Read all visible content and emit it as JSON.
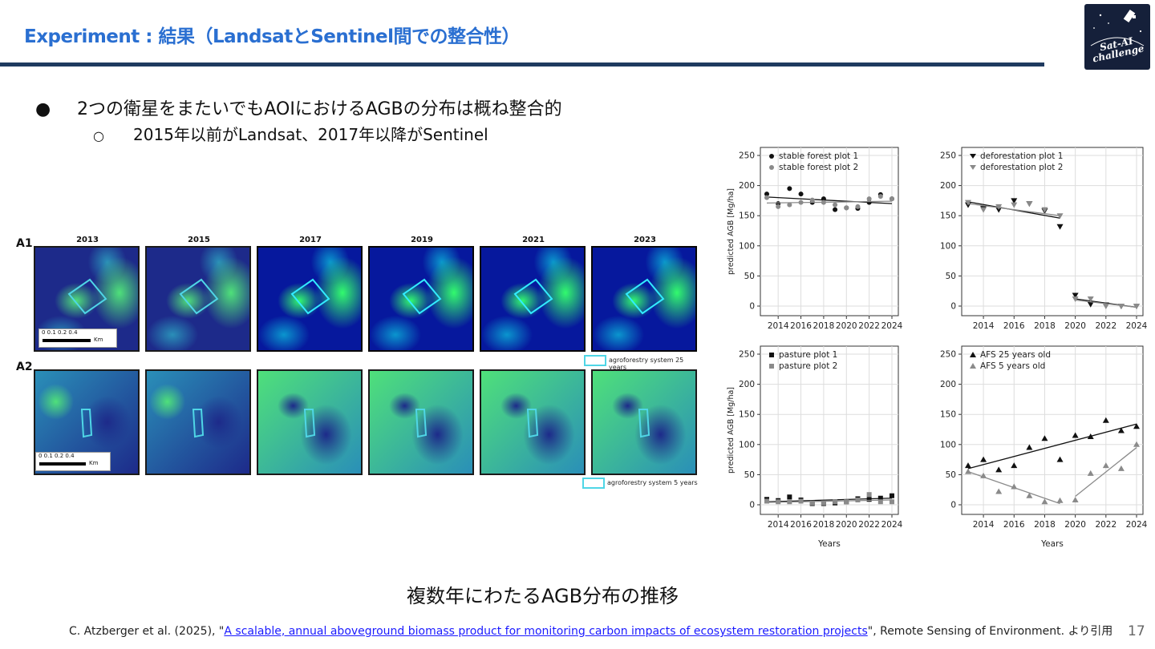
{
  "slide": {
    "title": "Experiment : 結果（LandsatとSentinel間での整合性）",
    "logo_text_1": "Sat-AI",
    "logo_text_2": "challenge",
    "bullet_1": "2つの衛星をまたいでもAOIにおけるAGBの分布は概ね整合的",
    "bullet_2": "2015年以前がLandsat、2017年以降がSentinel",
    "bullet_mark_1": "●",
    "bullet_mark_2": "○",
    "caption": "複数年にわたるAGB分布の推移",
    "citation_prefix": "C. Atzberger et al. (2025), \"",
    "citation_link": "A scalable, annual aboveground biomass product for monitoring carbon impacts of ecosystem restoration projects",
    "citation_suffix": "\", Remote Sensing of Environment. より引用",
    "page_number": "17"
  },
  "map_panel": {
    "row_labels": [
      "A1",
      "A2"
    ],
    "years": [
      "2013",
      "2015",
      "2017",
      "2019",
      "2021",
      "2023"
    ],
    "scale_ticks": "0  0.1 0.2      0.4",
    "scale_unit": "Km",
    "legend_a1": "agroforestry system 25 years",
    "legend_a2": "agroforestry system 5 years",
    "colors": {
      "low": "#1d2a8a",
      "mid": "#2a8fb8",
      "high": "#4fe07a",
      "outline": "#4fd6e6"
    }
  },
  "chart_data": [
    {
      "type": "scatter",
      "ylabel": "predicted AGB [Mg/ha]",
      "xlabel": "",
      "ylim": [
        0,
        250
      ],
      "xlim": [
        2013,
        2024
      ],
      "xticks": [
        "2014",
        "2016",
        "2018",
        "2020",
        "2022",
        "2024"
      ],
      "yticks": [
        "0",
        "50",
        "100",
        "150",
        "200",
        "250"
      ],
      "legend_position": "top-left",
      "series": [
        {
          "name": "stable forest plot 1",
          "marker": "circle",
          "color": "#111111",
          "x": [
            2013,
            2014,
            2015,
            2016,
            2017,
            2018,
            2019,
            2020,
            2021,
            2022,
            2023,
            2024
          ],
          "y": [
            186,
            170,
            195,
            186,
            172,
            178,
            160,
            163,
            162,
            172,
            185,
            178
          ],
          "trend": [
            [
              2013,
              181
            ],
            [
              2024,
              170
            ]
          ]
        },
        {
          "name": "stable forest plot 2",
          "marker": "circle",
          "color": "#8a8a8a",
          "x": [
            2013,
            2014,
            2015,
            2016,
            2017,
            2018,
            2019,
            2020,
            2021,
            2022,
            2023,
            2024
          ],
          "y": [
            180,
            165,
            168,
            172,
            176,
            172,
            168,
            163,
            165,
            178,
            182,
            178
          ],
          "trend": [
            [
              2013,
              171
            ],
            [
              2024,
              174
            ]
          ]
        }
      ]
    },
    {
      "type": "scatter",
      "xlabel": "",
      "ylim": [
        0,
        250
      ],
      "xlim": [
        2013,
        2024
      ],
      "xticks": [
        "2014",
        "2016",
        "2018",
        "2020",
        "2022",
        "2024"
      ],
      "yticks": [
        "0",
        "50",
        "100",
        "150",
        "200",
        "250"
      ],
      "legend_position": "top-left",
      "series": [
        {
          "name": "deforestation plot 1",
          "marker": "triangle-down",
          "color": "#111111",
          "x": [
            2013,
            2014,
            2015,
            2016,
            2017,
            2018,
            2019,
            2020,
            2021,
            2022,
            2023,
            2024
          ],
          "y": [
            168,
            162,
            160,
            175,
            170,
            158,
            132,
            18,
            3,
            2,
            0,
            0
          ],
          "trend": [
            [
              2013,
              173
            ],
            [
              2019,
              146
            ],
            [
              2020,
              12
            ],
            [
              2024,
              -2
            ]
          ]
        },
        {
          "name": "deforestation plot 2",
          "marker": "triangle-down",
          "color": "#8a8a8a",
          "x": [
            2013,
            2014,
            2015,
            2016,
            2017,
            2018,
            2019,
            2020,
            2021,
            2022,
            2023,
            2024
          ],
          "y": [
            172,
            160,
            165,
            168,
            170,
            160,
            150,
            12,
            12,
            0,
            0,
            0
          ],
          "trend": [
            [
              2013,
              170
            ],
            [
              2019,
              150
            ],
            [
              2020,
              10
            ],
            [
              2024,
              -2
            ]
          ]
        }
      ]
    },
    {
      "type": "scatter",
      "ylabel": "predicted AGB [Mg/ha]",
      "xlabel": "Years",
      "ylim": [
        0,
        250
      ],
      "xlim": [
        2013,
        2024
      ],
      "xticks": [
        "2014",
        "2016",
        "2018",
        "2020",
        "2022",
        "2024"
      ],
      "yticks": [
        "0",
        "50",
        "100",
        "150",
        "200",
        "250"
      ],
      "legend_position": "top-left",
      "series": [
        {
          "name": "pasture plot 1",
          "marker": "square",
          "color": "#111111",
          "x": [
            2013,
            2014,
            2015,
            2016,
            2017,
            2018,
            2019,
            2020,
            2021,
            2022,
            2023,
            2024
          ],
          "y": [
            9,
            7,
            13,
            8,
            2,
            2,
            3,
            5,
            10,
            9,
            11,
            15
          ],
          "trend": [
            [
              2013,
              5
            ],
            [
              2024,
              11
            ]
          ]
        },
        {
          "name": "pasture plot 2",
          "marker": "square",
          "color": "#8a8a8a",
          "x": [
            2013,
            2014,
            2015,
            2016,
            2017,
            2018,
            2019,
            2020,
            2021,
            2022,
            2023,
            2024
          ],
          "y": [
            6,
            5,
            5,
            6,
            3,
            3,
            5,
            5,
            8,
            17,
            5,
            5
          ],
          "trend": [
            [
              2013,
              4
            ],
            [
              2024,
              8
            ]
          ]
        }
      ]
    },
    {
      "type": "scatter",
      "xlabel": "Years",
      "ylim": [
        0,
        250
      ],
      "xlim": [
        2013,
        2024
      ],
      "xticks": [
        "2014",
        "2016",
        "2018",
        "2020",
        "2022",
        "2024"
      ],
      "yticks": [
        "0",
        "50",
        "100",
        "150",
        "200",
        "250"
      ],
      "legend_position": "top-left",
      "series": [
        {
          "name": "AFS 25 years old",
          "marker": "triangle-up",
          "color": "#111111",
          "x": [
            2013,
            2014,
            2015,
            2016,
            2017,
            2018,
            2019,
            2020,
            2021,
            2022,
            2023,
            2024
          ],
          "y": [
            65,
            75,
            58,
            65,
            95,
            110,
            75,
            115,
            113,
            140,
            123,
            130
          ],
          "trend": [
            [
              2013,
              60
            ],
            [
              2024,
              134
            ]
          ]
        },
        {
          "name": "AFS 5 years old",
          "marker": "triangle-up",
          "color": "#8a8a8a",
          "x": [
            2013,
            2014,
            2015,
            2016,
            2017,
            2018,
            2019,
            2020,
            2021,
            2022,
            2023,
            2024
          ],
          "y": [
            55,
            48,
            22,
            30,
            15,
            5,
            7,
            8,
            52,
            65,
            60,
            100
          ],
          "trend": [
            [
              2013,
              55
            ],
            [
              2019,
              2
            ],
            [
              2020,
              14
            ],
            [
              2024,
              95
            ]
          ]
        }
      ]
    }
  ]
}
